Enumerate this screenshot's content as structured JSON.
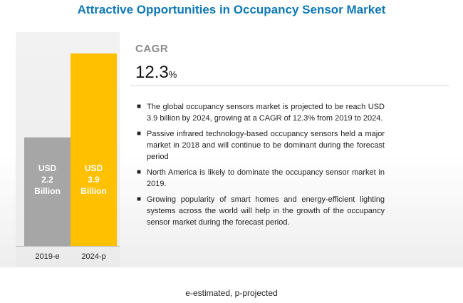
{
  "title": "Attractive Opportunities in Occupancy Sensor Market",
  "cagr": {
    "label": "CAGR",
    "value": "12.3",
    "unit": "%"
  },
  "bullets": [
    "The global occupancy sensors market is projected to be reach USD 3.9 billion by 2024, growing at a CAGR of 12.3% from 2019 to 2024.",
    "Passive infrared technology-based occupancy sensors held a major market in 2018 and will continue to be dominant during the forecast period",
    "North America is likely to dominate the occupancy sensor market in 2019.",
    "Growing popularity of smart homes and energy-efficient lighting systems across the world will help in the growth of the occupancy sensor market during the forecast period."
  ],
  "footnote": "e-estimated, p-projected",
  "chart_data": {
    "type": "bar",
    "categories": [
      "2019-e",
      "2024-p"
    ],
    "values": [
      2.2,
      3.9
    ],
    "data_labels": [
      [
        "USD",
        "2.2",
        "Billion"
      ],
      [
        "USD",
        "3.9",
        "Billion"
      ]
    ],
    "colors": [
      "#a6a6a6",
      "#ffc000"
    ],
    "ylim": [
      0,
      3.9
    ],
    "grid": false,
    "legend": "none"
  }
}
